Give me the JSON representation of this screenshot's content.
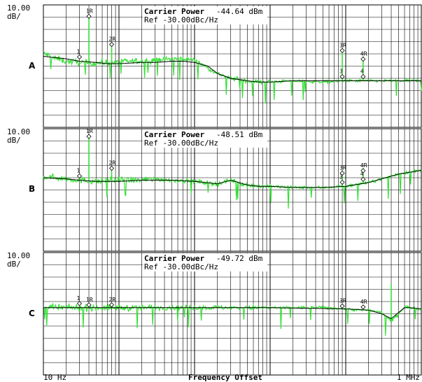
{
  "colors": {
    "trace": "#33e033",
    "smoothed": "#000000",
    "grid": "#000000",
    "background": "#ffffff"
  },
  "x_axis": {
    "label": "Frequency Offset",
    "start_label": "10 Hz",
    "stop_label": "1 MHz"
  },
  "panels": [
    {
      "id": "A",
      "scale": "10.00",
      "unit": "dB/",
      "title": "Carrier Power",
      "power": "-44.64 dBm",
      "ref": "Ref -30.00dBc/Hz"
    },
    {
      "id": "B",
      "scale": "10.00",
      "unit": "dB/",
      "title": "Carrier Power",
      "power": "-48.51 dBm",
      "ref": "Ref -30.00dBc/Hz"
    },
    {
      "id": "C",
      "scale": "10.00",
      "unit": "dB/",
      "title": "Carrier Power",
      "power": "-49.72 dBm",
      "ref": "Ref -30.00dBc/Hz"
    }
  ],
  "chart_data": [
    {
      "type": "line",
      "panel": "A",
      "title": "Carrier Power -44.64 dBm",
      "xlabel": "Frequency Offset",
      "x_scale": "log",
      "xlim": [
        10,
        1000000
      ],
      "ylim": [
        -130,
        -30
      ],
      "y_div": 10,
      "series": [
        {
          "kind": "measured",
          "x": [
            10,
            13,
            20,
            30,
            40,
            60,
            100,
            150,
            200,
            300,
            500,
            700,
            1000,
            2000,
            3000,
            5000,
            7000,
            10000,
            20000,
            50000,
            100000,
            200000,
            500000,
            1000000
          ],
          "y": [
            -69,
            -73,
            -76,
            -77,
            -78,
            -77,
            -77,
            -76,
            -76,
            -75,
            -74,
            -74,
            -75,
            -86,
            -90,
            -92,
            -93,
            -93,
            -92,
            -93,
            -92,
            -92,
            -92,
            -92
          ]
        },
        {
          "kind": "smoothed",
          "x": [
            10,
            20,
            30,
            50,
            70,
            100,
            200,
            300,
            500,
            700,
            1000,
            1500,
            2000,
            3000,
            5000,
            7000,
            10000,
            20000,
            50000,
            100000,
            200000,
            500000,
            1000000
          ],
          "y": [
            -72,
            -74,
            -76,
            -77,
            -78,
            -78,
            -77,
            -77,
            -76,
            -76,
            -77,
            -80,
            -86,
            -90,
            -92,
            -93,
            -93,
            -92,
            -92,
            -92,
            -92,
            -92,
            -92
          ]
        }
      ],
      "spurs": [
        {
          "x": 40,
          "y": -37
        },
        {
          "x": 80,
          "y": -60
        },
        {
          "x": 90000,
          "y": -65
        },
        {
          "x": 170000,
          "y": -72
        }
      ],
      "markers": [
        {
          "label": "1",
          "x": 30
        },
        {
          "label": "1R",
          "x": 40
        },
        {
          "label": "2R",
          "x": 80
        },
        {
          "label": "3",
          "x": 90000
        },
        {
          "label": "3R",
          "x": 90000
        },
        {
          "label": "4",
          "x": 170000
        },
        {
          "label": "4R",
          "x": 170000
        }
      ]
    },
    {
      "type": "line",
      "panel": "B",
      "title": "Carrier Power -48.51 dBm",
      "xlabel": "Frequency Offset",
      "x_scale": "log",
      "xlim": [
        10,
        1000000
      ],
      "ylim": [
        -130,
        -30
      ],
      "y_div": 10,
      "series": [
        {
          "kind": "measured",
          "x": [
            10,
            15,
            20,
            30,
            50,
            100,
            200,
            300,
            500,
            1000,
            2000,
            3000,
            5000,
            7000,
            10000,
            20000,
            50000,
            100000,
            200000,
            500000,
            1000000
          ],
          "y": [
            -69,
            -70,
            -71,
            -72,
            -73,
            -72,
            -72,
            -71,
            -72,
            -73,
            -75,
            -72,
            -76,
            -77,
            -77,
            -78,
            -78,
            -77,
            -74,
            -67,
            -64
          ]
        },
        {
          "kind": "smoothed",
          "x": [
            10,
            20,
            30,
            50,
            100,
            200,
            500,
            1000,
            2000,
            3000,
            5000,
            7000,
            10000,
            20000,
            50000,
            100000,
            200000,
            500000,
            1000000
          ],
          "y": [
            -70,
            -71,
            -72,
            -73,
            -73,
            -72,
            -72,
            -73,
            -75,
            -72,
            -76,
            -77,
            -77,
            -78,
            -78,
            -77,
            -74,
            -67,
            -64
          ]
        }
      ],
      "spurs": [
        {
          "x": 40,
          "y": -34
        },
        {
          "x": 80,
          "y": -60
        },
        {
          "x": 90000,
          "y": -64
        },
        {
          "x": 170000,
          "y": -62
        }
      ],
      "markers": [
        {
          "label": "1",
          "x": 30
        },
        {
          "label": "1R",
          "x": 40
        },
        {
          "label": "2R",
          "x": 80
        },
        {
          "label": "3",
          "x": 90000
        },
        {
          "label": "3R",
          "x": 90000
        },
        {
          "label": "4",
          "x": 170000
        },
        {
          "label": "4R",
          "x": 170000
        }
      ]
    },
    {
      "type": "line",
      "panel": "C",
      "title": "Carrier Power -49.72 dBm",
      "xlabel": "Frequency Offset",
      "x_scale": "log",
      "xlim": [
        10,
        1000000
      ],
      "ylim": [
        -130,
        -30
      ],
      "y_div": 10,
      "series": [
        {
          "kind": "measured",
          "x": [
            10,
            15,
            20,
            30,
            50,
            100,
            200,
            500,
            1000,
            2000,
            5000,
            10000,
            20000,
            50000,
            100000,
            150000,
            200000,
            300000,
            400000,
            500000,
            600000,
            700000,
            1000000
          ],
          "y": [
            -75,
            -75,
            -75,
            -75,
            -75,
            -75,
            -75,
            -75,
            -75,
            -75,
            -75,
            -75,
            -75,
            -75,
            -76,
            -77,
            -77,
            -79,
            -86,
            -80,
            -74,
            -75,
            -76
          ]
        },
        {
          "kind": "smoothed",
          "x": [
            10,
            30,
            100,
            1000,
            10000,
            100000,
            200000,
            300000,
            400000,
            500000,
            600000,
            700000,
            1000000
          ],
          "y": [
            -75,
            -75,
            -75,
            -75,
            -75,
            -76,
            -77,
            -80,
            -84,
            -79,
            -75,
            -75,
            -76
          ]
        }
      ],
      "spurs": [
        {
          "x": 400000,
          "y": -56
        }
      ],
      "markers": [
        {
          "label": "1",
          "x": 30
        },
        {
          "label": "1R",
          "x": 40
        },
        {
          "label": "2R",
          "x": 80
        },
        {
          "label": "3R",
          "x": 90000
        },
        {
          "label": "4R",
          "x": 170000
        }
      ]
    }
  ]
}
